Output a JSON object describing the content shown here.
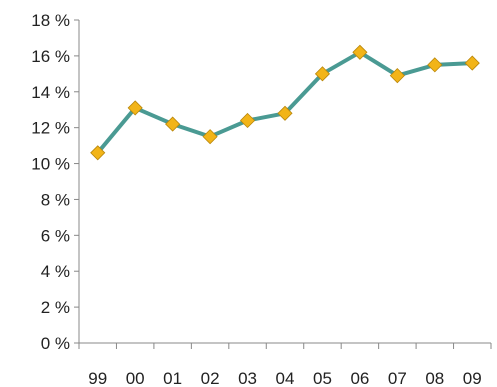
{
  "chart_data": {
    "type": "line",
    "x": [
      "99",
      "00",
      "01",
      "02",
      "03",
      "04",
      "05",
      "06",
      "07",
      "08",
      "09"
    ],
    "series": [
      {
        "values": [
          10.6,
          13.1,
          12.2,
          11.5,
          12.4,
          12.8,
          15.0,
          16.2,
          14.9,
          15.5,
          15.6
        ]
      }
    ],
    "ylim": [
      0,
      18
    ],
    "y_ticks": [
      0,
      2,
      4,
      6,
      8,
      10,
      12,
      14,
      16,
      18
    ],
    "y_tick_labels": [
      "0 %",
      "2 %",
      "4 %",
      "6 %",
      "8 %",
      "10 %",
      "12 %",
      "14 %",
      "16 %",
      "18 %"
    ],
    "title": "",
    "xlabel": "",
    "ylabel": "",
    "grid": false,
    "legend": "none",
    "line_color": "#4A9A93",
    "marker_color": "#F2B418",
    "marker_shape": "diamond"
  }
}
